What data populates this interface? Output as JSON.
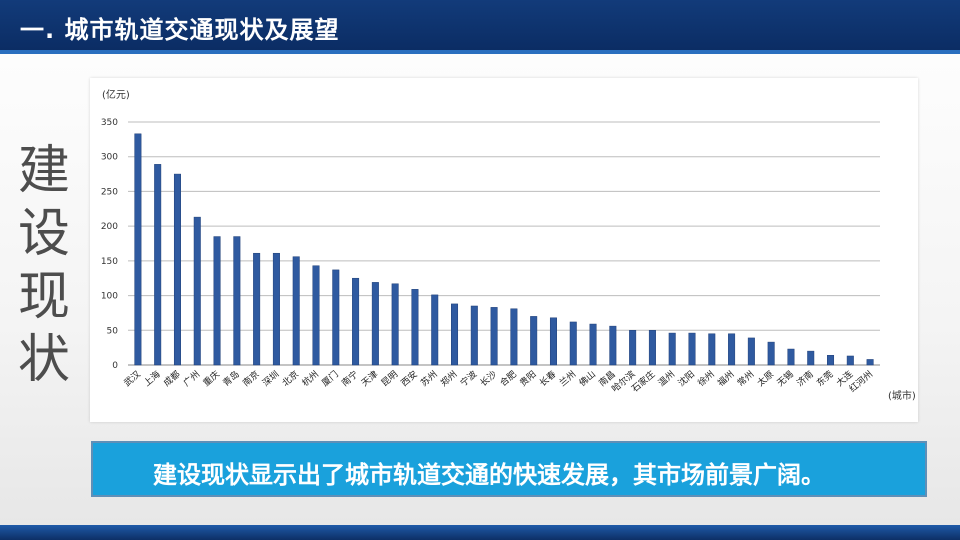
{
  "header": {
    "title": "一. 城市轨道交通现状及展望"
  },
  "side_title": [
    "建",
    "设",
    "现",
    "状"
  ],
  "banner": {
    "text": "建设现状显示出了城市轨道交通的快速发展，其市场前景广阔。"
  },
  "colors": {
    "header": "#0b2c63",
    "bar": "#2f5aa0",
    "banner": "#1aa1dc"
  },
  "chart_data": {
    "type": "bar",
    "ylabel": "(亿元)",
    "xlabel": "(城市)",
    "ylim": [
      0,
      350
    ],
    "yticks": [
      0,
      50,
      100,
      150,
      200,
      250,
      300,
      350
    ],
    "grid": true,
    "categories": [
      "武汉",
      "上海",
      "成都",
      "广州",
      "重庆",
      "青岛",
      "南京",
      "深圳",
      "北京",
      "杭州",
      "厦门",
      "南宁",
      "天津",
      "昆明",
      "西安",
      "苏州",
      "郑州",
      "宁波",
      "长沙",
      "合肥",
      "贵阳",
      "长春",
      "兰州",
      "佛山",
      "南昌",
      "哈尔滨",
      "石家庄",
      "温州",
      "沈阳",
      "徐州",
      "福州",
      "常州",
      "太原",
      "无锡",
      "济南",
      "东莞",
      "大连",
      "红河州"
    ],
    "values": [
      333,
      289,
      275,
      213,
      185,
      185,
      161,
      161,
      156,
      143,
      137,
      125,
      119,
      117,
      109,
      101,
      88,
      85,
      83,
      81,
      70,
      68,
      62,
      59,
      56,
      50,
      50,
      46,
      46,
      45,
      45,
      39,
      33,
      23,
      20,
      14,
      13,
      8
    ]
  }
}
